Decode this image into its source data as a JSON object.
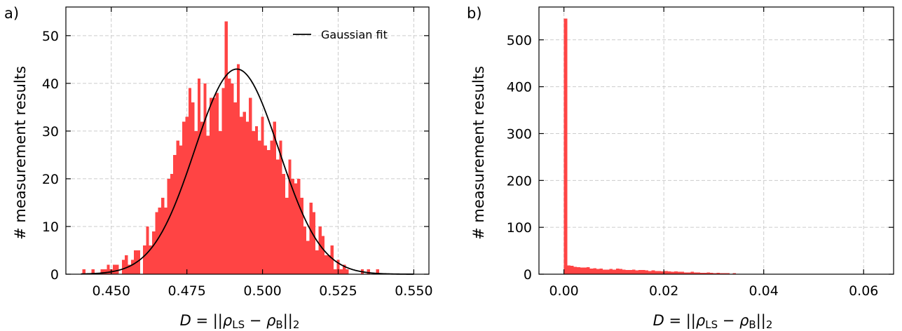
{
  "colors": {
    "bar": "#ff4444",
    "fit": "#000000",
    "grid": "#cccccc",
    "axis": "#000000"
  },
  "chart_data": [
    {
      "panel_label": "a)",
      "type": "bar",
      "xlabel": "D = ||ρ_LS − ρ_B||₂",
      "ylabel": "# measurement results",
      "xlim": [
        0.435,
        0.555
      ],
      "ylim": [
        0,
        56
      ],
      "xticks": [
        0.45,
        0.475,
        0.5,
        0.525,
        0.55
      ],
      "xtick_labels": [
        "0.450",
        "0.475",
        "0.500",
        "0.525",
        "0.550"
      ],
      "yticks": [
        0,
        10,
        20,
        30,
        40,
        50
      ],
      "ytick_labels": [
        "0",
        "10",
        "20",
        "30",
        "40",
        "50"
      ],
      "grid": true,
      "legend": {
        "position": "top-right",
        "entries": [
          "Gaussian fit"
        ]
      },
      "bin_start": 0.4405,
      "bin_width": 0.001,
      "values": [
        1,
        0,
        0,
        1,
        0,
        0,
        1,
        1,
        2,
        1,
        2,
        2,
        0,
        3,
        4,
        2,
        3,
        5,
        5,
        0,
        6,
        10,
        6,
        9,
        13,
        14,
        16,
        14,
        20,
        21,
        25,
        28,
        27,
        32,
        33,
        39,
        36,
        30,
        41,
        32,
        40,
        29,
        37,
        37,
        38,
        30,
        39,
        53,
        41,
        40,
        36,
        44,
        33,
        34,
        32,
        37,
        30,
        31,
        28,
        33,
        27,
        26,
        28,
        32,
        24,
        28,
        21,
        16,
        24,
        20,
        19,
        20,
        16,
        10,
        7,
        15,
        13,
        5,
        10,
        8,
        4,
        4,
        6,
        1,
        3,
        1,
        2,
        1,
        0,
        0,
        0,
        0,
        1,
        0,
        1,
        0,
        0,
        1,
        0,
        0,
        0
      ],
      "fit": {
        "name": "Gaussian fit",
        "amplitude": 43,
        "mean": 0.4915,
        "sigma": 0.0139,
        "x_range": [
          0.44,
          0.55
        ]
      }
    },
    {
      "panel_label": "b)",
      "type": "bar",
      "xlabel": "D = ||ρ_LS − ρ_B||₂",
      "ylabel": "# measurement results",
      "xlim": [
        -0.005,
        0.066
      ],
      "ylim": [
        0,
        570
      ],
      "xticks": [
        0,
        0.02,
        0.04,
        0.06
      ],
      "xtick_labels": [
        "0.00",
        "0.02",
        "0.04",
        "0.06"
      ],
      "yticks": [
        0,
        100,
        200,
        300,
        400,
        500
      ],
      "ytick_labels": [
        "0",
        "100",
        "200",
        "300",
        "400",
        "500"
      ],
      "grid": true,
      "bin_start": 0.0,
      "bin_width": 0.00065,
      "values": [
        545,
        19,
        18,
        16,
        15,
        14,
        14,
        15,
        12,
        13,
        11,
        12,
        10,
        10,
        11,
        10,
        12,
        11,
        10,
        9,
        9,
        10,
        8,
        9,
        9,
        8,
        7,
        8,
        7,
        7,
        6,
        7,
        6,
        5,
        6,
        5,
        5,
        4,
        4,
        5,
        4,
        4,
        3,
        3,
        4,
        3,
        2,
        3,
        2,
        2,
        2,
        1,
        2,
        1,
        1,
        1,
        1,
        1,
        0,
        0,
        1,
        0,
        0,
        0,
        1,
        0,
        0,
        0,
        0,
        0,
        0,
        0,
        0,
        0,
        0,
        0,
        0,
        0,
        0,
        0,
        0,
        0,
        0,
        0,
        0,
        0,
        0,
        0,
        0,
        0,
        0,
        0,
        0,
        0,
        0,
        0,
        0,
        0,
        0,
        0,
        0
      ]
    }
  ]
}
